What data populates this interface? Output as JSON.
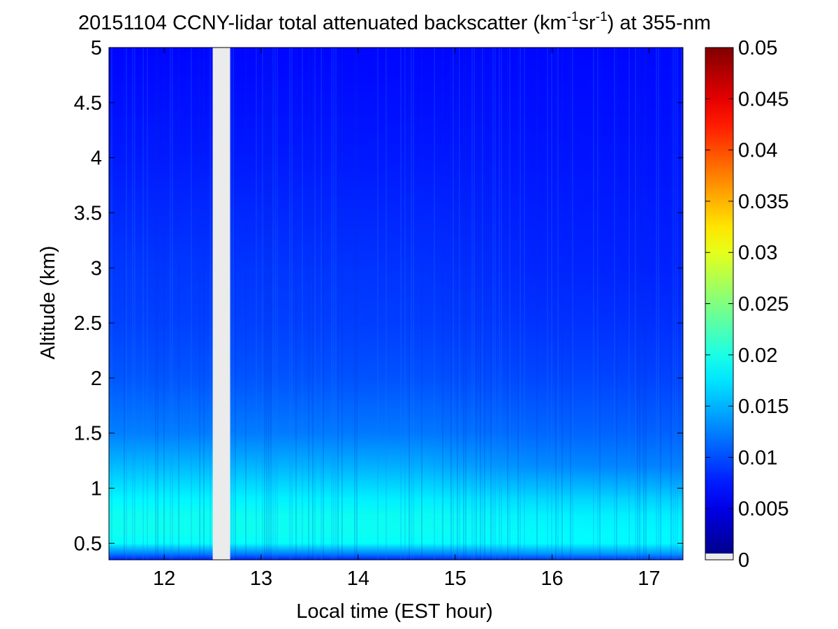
{
  "chart_data": {
    "type": "heatmap",
    "title": {
      "prefix": "20151104 CCNY-lidar total attenuated backscatter (km",
      "sup1": "-1",
      "mid": "sr",
      "sup2": "-1",
      "suffix": ") at 355-nm"
    },
    "xlabel": "Local time (EST hour)",
    "ylabel": "Altitude (km)",
    "x_range": [
      11.43,
      17.35
    ],
    "y_range": [
      0.35,
      5
    ],
    "x_ticks": [
      "12",
      "13",
      "14",
      "15",
      "16",
      "17"
    ],
    "y_ticks": [
      "0.5",
      "1",
      "1.5",
      "2",
      "2.5",
      "3",
      "3.5",
      "4",
      "4.5",
      "5"
    ],
    "data_gap": {
      "x_start": 12.5,
      "x_end": 12.68,
      "color": "#ebebeb"
    },
    "colorbar": {
      "min": 0,
      "max": 0.05,
      "colormap": "jet",
      "ticks": [
        "0",
        "0.005",
        "0.01",
        "0.015",
        "0.02",
        "0.025",
        "0.03",
        "0.035",
        "0.04",
        "0.045",
        "0.05"
      ]
    },
    "altitude_profile_km": [
      0.35,
      0.4,
      0.5,
      0.6,
      0.75,
      0.9,
      1.0,
      1.2,
      1.5,
      2.0,
      2.5,
      3.0,
      4.0,
      5.0
    ],
    "backscatter_profile_early": [
      0.0075,
      0.012,
      0.019,
      0.0195,
      0.0195,
      0.0185,
      0.0175,
      0.0155,
      0.0125,
      0.0105,
      0.0095,
      0.009,
      0.0075,
      0.0065
    ],
    "backscatter_profile_late": [
      0.009,
      0.0135,
      0.0185,
      0.0185,
      0.018,
      0.0165,
      0.015,
      0.0125,
      0.011,
      0.0095,
      0.0085,
      0.0078,
      0.0072,
      0.0066
    ]
  }
}
